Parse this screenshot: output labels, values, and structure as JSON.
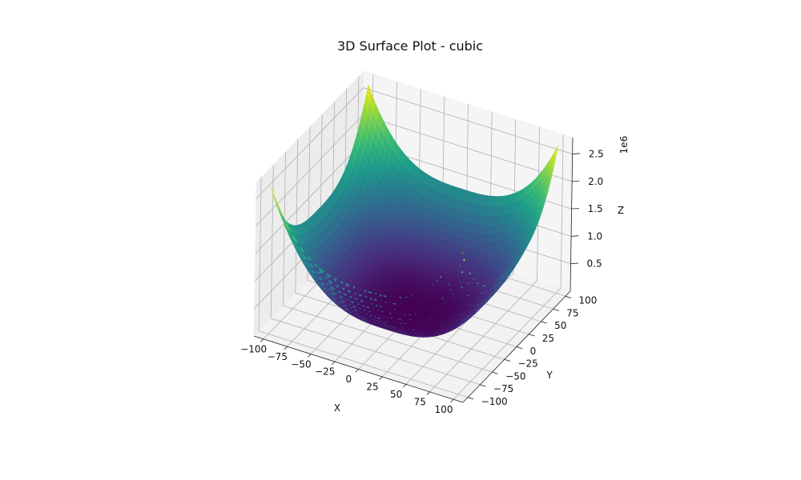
{
  "chart_data": {
    "type": "surface3d",
    "title": "3D Surface Plot - cubic",
    "xlabel": "X",
    "ylabel": "Y",
    "zlabel": "Z",
    "z_offset_label": "1e6",
    "xlim": [
      -110,
      110
    ],
    "ylim": [
      -110,
      110
    ],
    "zlim": [
      0,
      2.8
    ],
    "x_ticks": [
      -100,
      -75,
      -50,
      -25,
      0,
      25,
      50,
      75,
      100
    ],
    "x_tick_labels": [
      "−100",
      "−75",
      "−50",
      "−25",
      "0",
      "25",
      "50",
      "75",
      "100"
    ],
    "y_ticks": [
      -100,
      -75,
      -50,
      -25,
      0,
      25,
      50,
      75,
      100
    ],
    "y_tick_labels": [
      "−100",
      "−75",
      "−50",
      "−25",
      "0",
      "25",
      "50",
      "75",
      "100"
    ],
    "z_ticks": [
      0.5,
      1.0,
      1.5,
      2.0,
      2.5
    ],
    "z_tick_labels": [
      "0.5",
      "1.0",
      "1.5",
      "2.0",
      "2.5"
    ],
    "surface": {
      "x_range": [
        -100,
        100
      ],
      "y_range": [
        -100,
        100
      ],
      "grid_points": 51,
      "z_at_corner": 2.7,
      "z_at_center": 0.0,
      "colormap": "viridis"
    },
    "grid": true
  }
}
